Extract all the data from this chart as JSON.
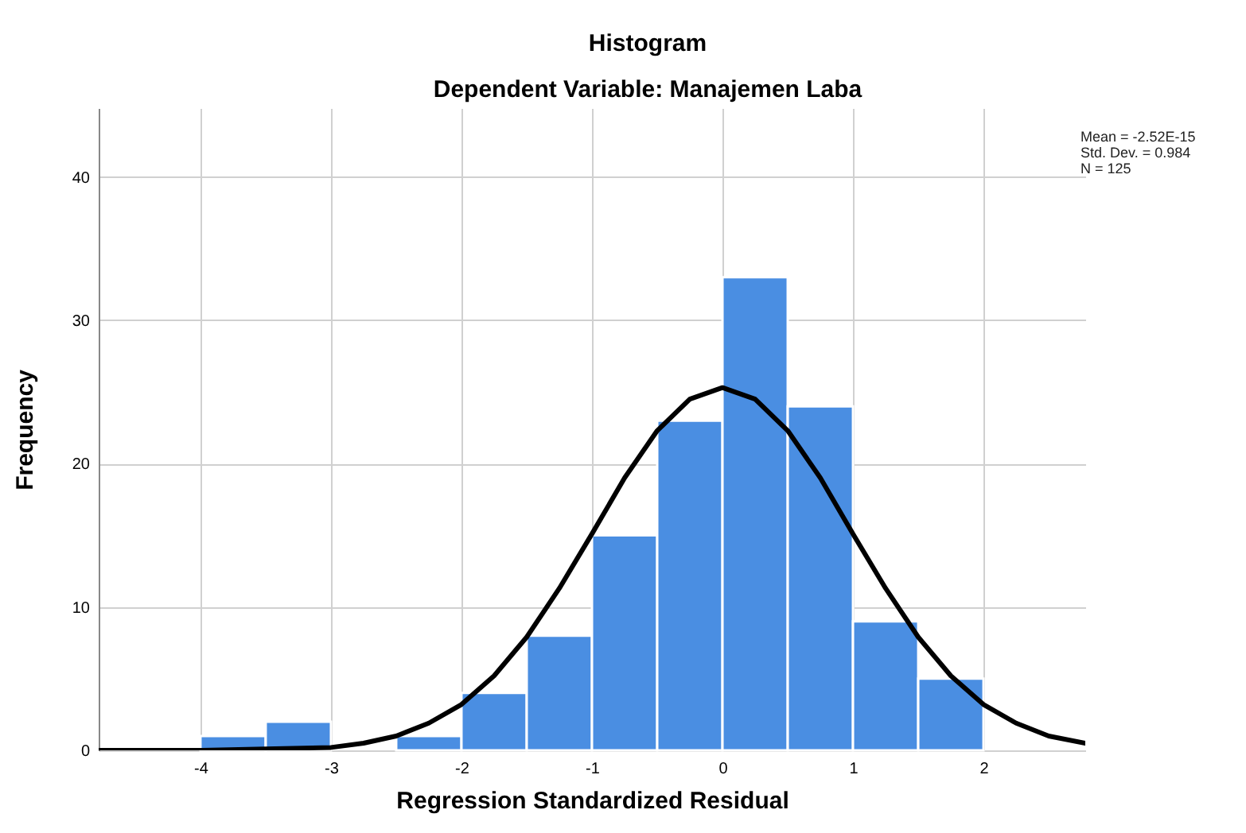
{
  "chart_data": {
    "type": "histogram",
    "title": "Histogram",
    "subtitle": "Dependent Variable: Manajemen Laba",
    "xlabel": "Regression Standardized Residual",
    "ylabel": "Frequency",
    "bins": [
      -4,
      -3.5,
      -3,
      -2.5,
      -2,
      -1.5,
      -1,
      -0.5,
      0,
      0.5,
      1,
      1.5,
      2
    ],
    "values": [
      1,
      2,
      0,
      1,
      4,
      8,
      15,
      23,
      33,
      24,
      9,
      5
    ],
    "color": "#4a8ee2",
    "series": [
      {
        "type": "line",
        "color": "#000000",
        "x": [
          -4.78,
          -4.5,
          -4,
          -3.5,
          -3,
          -2.75,
          -2.5,
          -2.25,
          -2,
          -1.75,
          -1.5,
          -1.25,
          -1,
          -0.75,
          -0.5,
          -0.25,
          0,
          0.25,
          0.5,
          0.75,
          1,
          1.25,
          1.5,
          1.75,
          2,
          2.25,
          2.5,
          2.78
        ],
        "values": [
          0,
          0,
          0,
          0.1,
          0.2,
          0.5,
          1,
          1.9,
          3.2,
          5.2,
          7.9,
          11.3,
          15.1,
          19,
          22.3,
          24.5,
          25.3,
          24.5,
          22.3,
          19,
          15.1,
          11.3,
          7.9,
          5.2,
          3.2,
          1.9,
          1,
          0.5
        ]
      }
    ],
    "xlim": [
      -4.78,
      2.78
    ],
    "ylim": [
      0,
      44.8
    ],
    "xticks": [
      -4,
      -3,
      -2,
      -1,
      0,
      1,
      2
    ],
    "yticks": [
      0,
      10,
      20,
      30,
      40
    ],
    "grid": true,
    "annotations": [
      "Mean = -2.52E-15",
      "Std. Dev. = 0.984",
      "N = 125"
    ]
  }
}
